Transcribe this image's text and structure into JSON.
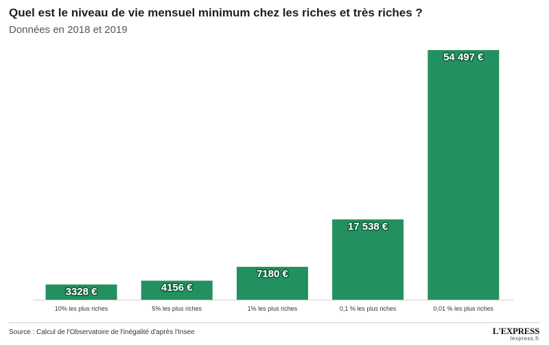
{
  "header": {
    "title": "Quel est le niveau de vie mensuel minimum chez les riches et très riches ?",
    "subtitle": "Données en 2018 et 2019"
  },
  "chart_data": {
    "type": "bar",
    "categories": [
      "10% les plus riches",
      "5% les plus riches",
      "1% les plus riches",
      "0,1 % les plus riches",
      "0,01 % les plus riches"
    ],
    "values": [
      3328,
      4156,
      7180,
      17538,
      54497
    ],
    "value_labels": [
      "3328 €",
      "4156 €",
      "7180 €",
      "17 538 €",
      "54 497 €"
    ],
    "title": "Quel est le niveau de vie mensuel minimum chez les riches et très riches ?",
    "xlabel": "",
    "ylabel": "",
    "ylim": [
      0,
      54497
    ],
    "grid": false,
    "legend": "none",
    "bar_color": "#22915f",
    "label_color": "#ffffff"
  },
  "footer": {
    "source": "Source : Calcul de l'Observatoire de l'inégalité d'après l'Insee",
    "logo": "L'EXPRESS",
    "logo_url": "lexpress.fr"
  }
}
